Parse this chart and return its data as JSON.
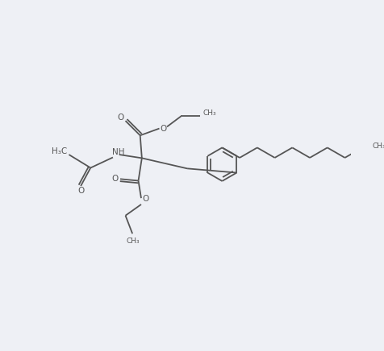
{
  "bg_color": "#eef0f5",
  "line_color": "#555555",
  "line_width": 1.3,
  "font_size": 7.5,
  "figsize": [
    4.77,
    4.36
  ],
  "dpi": 100,
  "xlim": [
    0,
    10
  ],
  "ylim": [
    0,
    9
  ]
}
